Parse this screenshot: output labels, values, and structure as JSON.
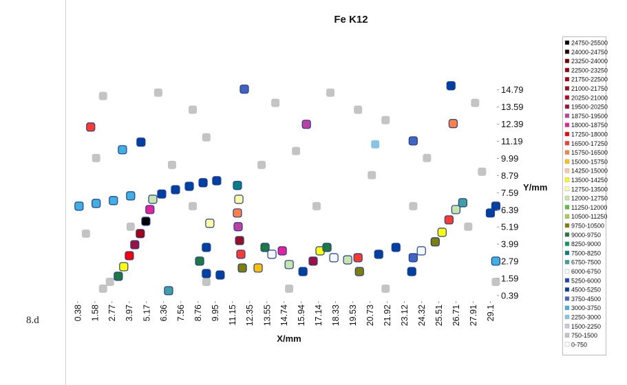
{
  "figure_label": "8.d",
  "chart_data": {
    "type": "heatmap",
    "title": "Fe K12",
    "xlabel": "X/mm",
    "ylabel": "Y/mm",
    "xlim": [
      0.2,
      29.7
    ],
    "ylim": [
      0,
      15.5
    ],
    "xticks": [
      0.38,
      1.58,
      2.77,
      3.97,
      5.17,
      6.36,
      7.56,
      8.76,
      9.95,
      11.15,
      12.35,
      13.55,
      14.74,
      15.94,
      17.14,
      18.33,
      19.53,
      20.73,
      21.92,
      23.12,
      24.32,
      25.51,
      26.71,
      27.91,
      29.1
    ],
    "yticks": [
      0.39,
      1.59,
      2.79,
      3.99,
      5.19,
      6.39,
      7.59,
      8.79,
      9.99,
      11.19,
      12.39,
      13.59,
      14.79
    ],
    "levels": [
      0,
      750,
      1500,
      2250,
      3000,
      3750,
      4500,
      5250,
      6000,
      6750,
      7500,
      8250,
      9000,
      9750,
      10500,
      11250,
      12000,
      12750,
      13500,
      14250,
      15000,
      15750,
      16500,
      17250,
      18000,
      18750,
      19500,
      20250,
      21000,
      21750,
      22500,
      23250,
      24000,
      24750,
      25500
    ],
    "legend": [
      {
        "name": "24750-25500",
        "color": "#000000"
      },
      {
        "name": "24000-24750",
        "color": "#1c0000"
      },
      {
        "name": "23250-24000",
        "color": "#7a0000"
      },
      {
        "name": "22500-23250",
        "color": "#950000"
      },
      {
        "name": "21750-22500",
        "color": "#a80010"
      },
      {
        "name": "21000-21750",
        "color": "#9a1020"
      },
      {
        "name": "20250-21000",
        "color": "#c00028"
      },
      {
        "name": "19500-20250",
        "color": "#a0103c"
      },
      {
        "name": "18750-19500",
        "color": "#c040a0"
      },
      {
        "name": "18000-18750",
        "color": "#e8209c"
      },
      {
        "name": "17250-18000",
        "color": "#ff0000"
      },
      {
        "name": "16500-17250",
        "color": "#ff3a2a"
      },
      {
        "name": "15750-16500",
        "color": "#ff8040"
      },
      {
        "name": "15000-15750",
        "color": "#ffc000"
      },
      {
        "name": "14250-15000",
        "color": "#ffc8a0"
      },
      {
        "name": "13500-14250",
        "color": "#ffff00"
      },
      {
        "name": "12750-13500",
        "color": "#ffffa0"
      },
      {
        "name": "12000-12750",
        "color": "#c8e4a8"
      },
      {
        "name": "11250-12000",
        "color": "#5cbf3c"
      },
      {
        "name": "10500-11250",
        "color": "#a4d040"
      },
      {
        "name": "9750-10500",
        "color": "#808000"
      },
      {
        "name": "9000-9750",
        "color": "#1e7a3c"
      },
      {
        "name": "8250-9000",
        "color": "#00a060"
      },
      {
        "name": "7500-8250",
        "color": "#008080"
      },
      {
        "name": "6750-7500",
        "color": "#40a0a0"
      },
      {
        "name": "6000-6750",
        "color": "#f4f8ff"
      },
      {
        "name": "5250-6000",
        "color": "#2040c0"
      },
      {
        "name": "4500-5250",
        "color": "#0040a0"
      },
      {
        "name": "3750-4500",
        "color": "#4064c0"
      },
      {
        "name": "3000-3750",
        "color": "#40b0e0"
      },
      {
        "name": "2250-3000",
        "color": "#88c4e4"
      },
      {
        "name": "1500-2250",
        "color": "#c4c8e0"
      },
      {
        "name": "750-1500",
        "color": "#c4c4c4"
      },
      {
        "name": "0-750",
        "color": "#ffffff"
      }
    ],
    "x": [
      2.15,
      5.99,
      8.39,
      14.14,
      17.97,
      19.89,
      21.81,
      9.34,
      15.58,
      24.69,
      28.04,
      6.95,
      1.67,
      13.18,
      20.85,
      28.52,
      0.96,
      2.15,
      29.48,
      23.73,
      17.01,
      27.56,
      9.34,
      15.1,
      21.81,
      2.63,
      4.07,
      8.39,
      0.48,
      1.67,
      2.87,
      4.07,
      3.21,
      3.59,
      3.98,
      4.36,
      4.74,
      5.13,
      5.41,
      5.61,
      6.23,
      7.19,
      8.15,
      9.11,
      10.06,
      11.5,
      11.6,
      11.5,
      11.55,
      11.65,
      11.74,
      11.84,
      9.34,
      8.87,
      9.34,
      10.3,
      9.58,
      12.94,
      13.42,
      13.9,
      14.62,
      15.1,
      16.06,
      16.77,
      17.25,
      17.73,
      18.21,
      19.17,
      19.89,
      19.99,
      21.33,
      22.53,
      23.73,
      23.63,
      24.3,
      25.26,
      25.74,
      26.22,
      26.7,
      27.18,
      29.1,
      29.48,
      29.48,
      1.29,
      4.79,
      11.98,
      16.3,
      26.51,
      23.73,
      3.5,
      6.71,
      26.36,
      21.09
    ],
    "y": [
      14.36,
      14.6,
      13.4,
      13.88,
      14.6,
      13.4,
      12.67,
      11.47,
      10.51,
      10.02,
      13.88,
      9.54,
      10.02,
      9.54,
      8.82,
      9.06,
      4.73,
      0.87,
      1.35,
      6.65,
      6.65,
      5.21,
      1.35,
      0.87,
      0.87,
      1.35,
      5.21,
      6.65,
      6.65,
      6.84,
      7.04,
      7.37,
      1.74,
      2.41,
      3.18,
      3.95,
      4.73,
      5.59,
      6.41,
      7.13,
      7.5,
      7.8,
      8.04,
      8.29,
      8.43,
      8.1,
      7.13,
      6.17,
      5.21,
      4.24,
      3.28,
      2.32,
      3.76,
      2.8,
      1.93,
      1.83,
      5.45,
      2.32,
      3.76,
      3.28,
      3.52,
      2.56,
      2.07,
      2.8,
      3.52,
      3.76,
      3.04,
      2.89,
      3.04,
      2.07,
      3.28,
      3.76,
      3.04,
      2.07,
      3.52,
      4.15,
      4.82,
      5.69,
      6.41,
      6.89,
      6.17,
      6.65,
      2.8,
      12.19,
      11.13,
      14.84,
      12.38,
      12.43,
      11.22,
      10.6,
      0.73,
      15.08,
      10.98
    ],
    "values": [
      1000,
      1000,
      1000,
      1000,
      1000,
      1000,
      1000,
      1000,
      1000,
      1000,
      1000,
      1000,
      1000,
      1000,
      1000,
      1000,
      1000,
      1000,
      1000,
      1000,
      1000,
      1000,
      1000,
      1000,
      1000,
      1000,
      1000,
      1000,
      3300,
      3300,
      3300,
      3300,
      9000,
      14000,
      17500,
      20000,
      22000,
      25000,
      18000,
      12000,
      4800,
      4800,
      4800,
      4800,
      4800,
      8000,
      13000,
      16000,
      19000,
      21000,
      17000,
      10000,
      5000,
      9000,
      5000,
      4500,
      13000,
      15000,
      9000,
      6000,
      18000,
      12000,
      5000,
      20000,
      14000,
      9000,
      6000,
      12000,
      17000,
      10000,
      4500,
      5000,
      4000,
      5000,
      6000,
      10000,
      14000,
      16500,
      12000,
      7000,
      4500,
      5000,
      3300,
      17000,
      5000,
      4000,
      19000,
      16000,
      4000,
      3300,
      7000,
      4500,
      2500
    ]
  }
}
